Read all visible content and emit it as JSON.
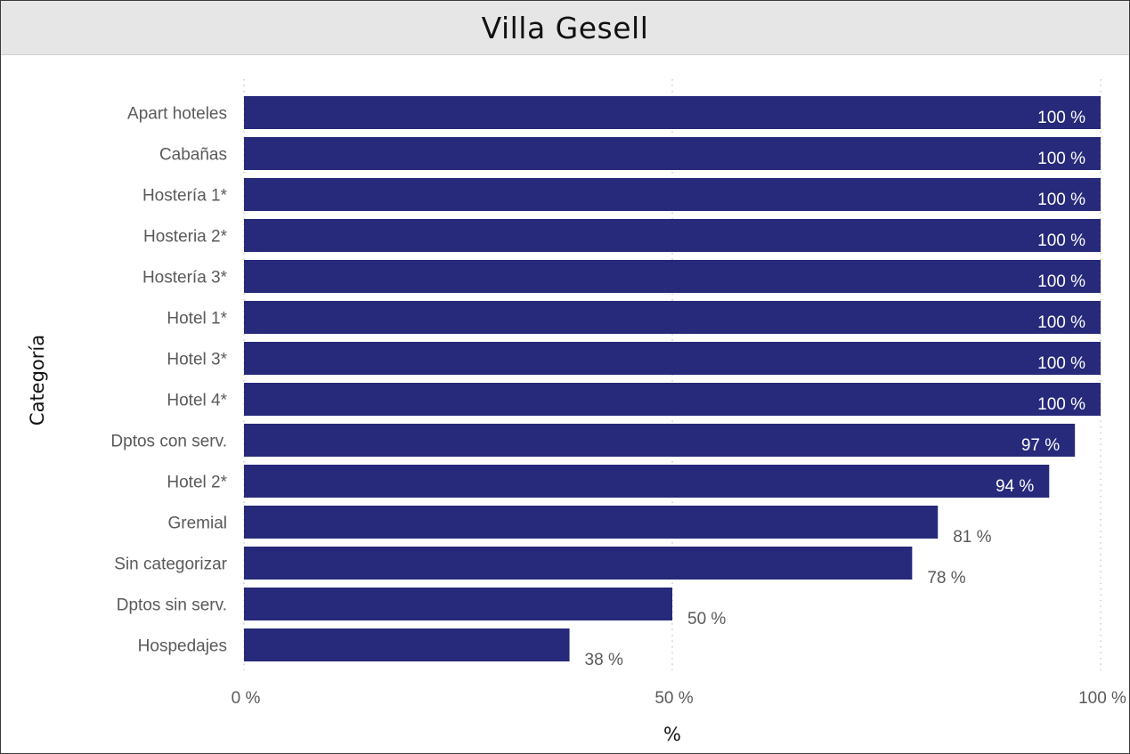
{
  "chart_data": {
    "type": "bar",
    "orientation": "horizontal",
    "title": "Villa Gesell",
    "xlabel": "%",
    "ylabel": "Categoría",
    "categories": [
      "Apart hoteles",
      "Cabañas",
      "Hostería 1*",
      "Hosteria 2*",
      "Hostería 3*",
      "Hotel 1*",
      "Hotel 3*",
      "Hotel 4*",
      "Dptos con serv.",
      "Hotel 2*",
      "Gremial",
      "Sin categorizar",
      "Dptos sin serv.",
      "Hospedajes"
    ],
    "values": [
      100,
      100,
      100,
      100,
      100,
      100,
      100,
      100,
      97,
      94,
      81,
      78,
      50,
      38
    ],
    "value_labels": [
      "100 %",
      "100 %",
      "100 %",
      "100 %",
      "100 %",
      "100 %",
      "100 %",
      "100 %",
      "97 %",
      "94 %",
      "81 %",
      "78 %",
      "50 %",
      "38 %"
    ],
    "xlim": [
      0,
      100
    ],
    "x_ticks": [
      0,
      50,
      100
    ],
    "x_tick_labels": [
      "0 %",
      "50 %",
      "100 %"
    ],
    "grid": "vertical-dotted",
    "bar_color": "#27297a"
  }
}
